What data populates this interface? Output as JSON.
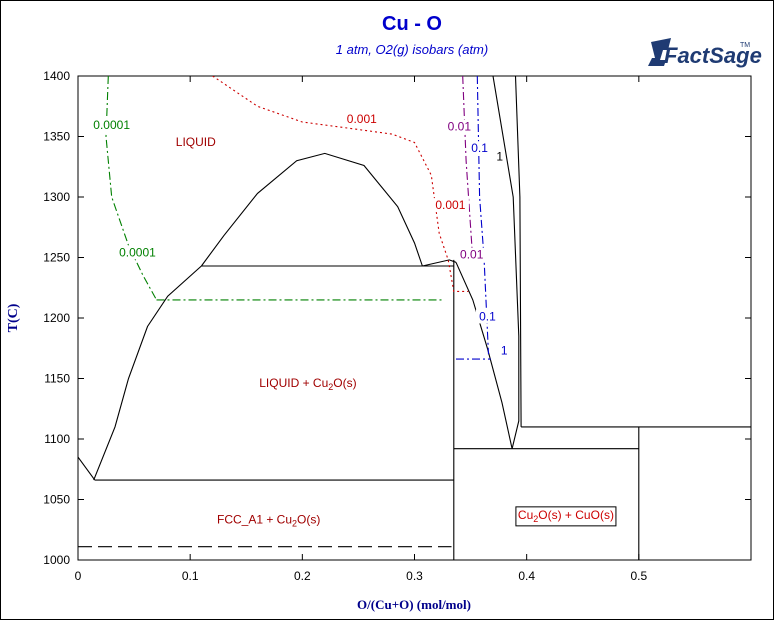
{
  "chart_data": {
    "type": "line",
    "title": "Cu - O",
    "subtitle": "1 atm, O2(g) isobars (atm)",
    "xlabel": "O/(Cu+O) (mol/mol)",
    "ylabel": "T(C)",
    "xlim": [
      0,
      0.6
    ],
    "ylim": [
      1000,
      1400
    ],
    "x_ticks": [
      {
        "v": 0,
        "label": "0"
      },
      {
        "v": 0.1,
        "label": "0.1"
      },
      {
        "v": 0.2,
        "label": "0.2"
      },
      {
        "v": 0.3,
        "label": "0.3"
      },
      {
        "v": 0.4,
        "label": "0.4"
      },
      {
        "v": 0.5,
        "label": "0.5"
      }
    ],
    "y_ticks": [
      {
        "v": 1000,
        "label": "1000"
      },
      {
        "v": 1050,
        "label": "1050"
      },
      {
        "v": 1100,
        "label": "1100"
      },
      {
        "v": 1150,
        "label": "1150"
      },
      {
        "v": 1200,
        "label": "1200"
      },
      {
        "v": 1250,
        "label": "1250"
      },
      {
        "v": 1300,
        "label": "1300"
      },
      {
        "v": 1350,
        "label": "1350"
      },
      {
        "v": 1400,
        "label": "1400"
      }
    ],
    "logo": {
      "text": "FactSage",
      "tm": "TM"
    },
    "phase_labels": [
      {
        "text": "LIQUID",
        "x": 0.105,
        "y": 1342,
        "color": "#a00000"
      },
      {
        "base": "LIQUID + Cu",
        "sub": "2",
        "rest": "O(s)",
        "x": 0.205,
        "y": 1143,
        "color": "#a00000"
      },
      {
        "base": "FCC_A1 + Cu",
        "sub": "2",
        "rest": "O(s)",
        "x": 0.17,
        "y": 1030,
        "color": "#a00000"
      },
      {
        "base": "Cu",
        "sub": "2",
        "rest": "O(s) + CuO(s)",
        "x": 0.435,
        "y": 1034,
        "color": "#cc0000",
        "boxed": true
      }
    ],
    "series": [
      {
        "style": "solid",
        "color": "#000000",
        "points": [
          [
            0.014,
            1066
          ],
          [
            0.033,
            1110
          ],
          [
            0.045,
            1150
          ],
          [
            0.062,
            1193
          ],
          [
            0.08,
            1218
          ],
          [
            0.11,
            1243
          ]
        ]
      },
      {
        "style": "solid",
        "color": "#000000",
        "points": [
          [
            0.11,
            1243
          ],
          [
            0.13,
            1268
          ],
          [
            0.16,
            1303
          ],
          [
            0.195,
            1330
          ],
          [
            0.22,
            1336
          ],
          [
            0.255,
            1326
          ],
          [
            0.285,
            1292
          ],
          [
            0.3,
            1262
          ],
          [
            0.307,
            1243
          ]
        ]
      },
      {
        "style": "solid",
        "color": "#000000",
        "points": [
          [
            0.307,
            1243
          ],
          [
            0.331,
            1248
          ],
          [
            0.337,
            1246
          ]
        ]
      },
      {
        "style": "solid",
        "color": "#000000",
        "points": [
          [
            0.11,
            1243
          ],
          [
            0.335,
            1243
          ]
        ]
      },
      {
        "style": "solid",
        "color": "#000000",
        "points": [
          [
            0,
            1085
          ],
          [
            0.015,
            1066
          ]
        ]
      },
      {
        "style": "solid",
        "color": "#000000",
        "points": [
          [
            0.015,
            1066
          ],
          [
            0.335,
            1066
          ]
        ]
      },
      {
        "style": "solid",
        "color": "#000000",
        "points": [
          [
            0.335,
            1248
          ],
          [
            0.335,
            1000
          ]
        ]
      },
      {
        "style": "solid",
        "color": "#000000",
        "points": [
          [
            0.337,
            1246
          ],
          [
            0.352,
            1215
          ],
          [
            0.365,
            1175
          ],
          [
            0.378,
            1130
          ],
          [
            0.387,
            1092
          ]
        ]
      },
      {
        "style": "solid",
        "color": "#000000",
        "points": [
          [
            0.387,
            1092
          ],
          [
            0.393,
            1115
          ],
          [
            0.393,
            1185
          ],
          [
            0.388,
            1300
          ],
          [
            0.37,
            1400
          ]
        ]
      },
      {
        "style": "solid",
        "color": "#000000",
        "points": [
          [
            0.39,
            1400
          ],
          [
            0.394,
            1300
          ],
          [
            0.395,
            1110
          ]
        ]
      },
      {
        "style": "solid",
        "color": "#000000",
        "points": [
          [
            0.395,
            1110
          ],
          [
            0.6,
            1110
          ]
        ]
      },
      {
        "style": "solid",
        "color": "#000000",
        "points": [
          [
            0.335,
            1092
          ],
          [
            0.5,
            1092
          ]
        ]
      },
      {
        "style": "solid",
        "color": "#000000",
        "points": [
          [
            0.5,
            1110
          ],
          [
            0.5,
            1000
          ]
        ]
      },
      {
        "style": "dashed",
        "color": "#000000",
        "points": [
          [
            0,
            1011
          ],
          [
            0.333,
            1011
          ]
        ]
      },
      {
        "style": "dashdot",
        "color": "#008000",
        "points": [
          [
            0.027,
            1400
          ],
          [
            0.025,
            1350
          ],
          [
            0.03,
            1300
          ],
          [
            0.045,
            1260
          ],
          [
            0.058,
            1235
          ],
          [
            0.07,
            1215
          ]
        ]
      },
      {
        "style": "dashdot",
        "color": "#008000",
        "points": [
          [
            0.07,
            1215
          ],
          [
            0.325,
            1215
          ]
        ]
      },
      {
        "style": "dotted",
        "color": "#cc0000",
        "points": [
          [
            0.12,
            1400
          ],
          [
            0.16,
            1375
          ],
          [
            0.2,
            1362
          ],
          [
            0.24,
            1357
          ],
          [
            0.28,
            1352
          ],
          [
            0.3,
            1345
          ],
          [
            0.315,
            1318
          ],
          [
            0.322,
            1270
          ],
          [
            0.33,
            1248
          ],
          [
            0.335,
            1222
          ],
          [
            0.348,
            1222
          ]
        ]
      },
      {
        "style": "dashdot",
        "color": "#800080",
        "points": [
          [
            0.343,
            1400
          ],
          [
            0.346,
            1330
          ],
          [
            0.35,
            1275
          ],
          [
            0.352,
            1248
          ]
        ]
      },
      {
        "style": "dashdot",
        "color": "#0000cc",
        "points": [
          [
            0.356,
            1400
          ],
          [
            0.358,
            1300
          ],
          [
            0.362,
            1250
          ],
          [
            0.366,
            1170
          ]
        ]
      },
      {
        "style": "dashdot",
        "color": "#0000cc",
        "points": [
          [
            0.337,
            1166
          ],
          [
            0.368,
            1166
          ]
        ]
      }
    ],
    "isobar_labels": [
      {
        "text": "0.0001",
        "x": 0.03,
        "y": 1356,
        "color": "#008000"
      },
      {
        "text": "0.0001",
        "x": 0.053,
        "y": 1251,
        "color": "#008000"
      },
      {
        "text": "0.001",
        "x": 0.253,
        "y": 1361,
        "color": "#cc0000"
      },
      {
        "text": "0.001",
        "x": 0.332,
        "y": 1290,
        "color": "#cc0000"
      },
      {
        "text": "0.01",
        "x": 0.34,
        "y": 1355,
        "color": "#800080"
      },
      {
        "text": "0.01",
        "x": 0.351,
        "y": 1249,
        "color": "#800080"
      },
      {
        "text": "0.1",
        "x": 0.358,
        "y": 1337,
        "color": "#0000cc"
      },
      {
        "text": "0.1",
        "x": 0.365,
        "y": 1198,
        "color": "#0000cc"
      },
      {
        "text": "1",
        "x": 0.376,
        "y": 1330,
        "color": "#000000"
      },
      {
        "text": "1",
        "x": 0.38,
        "y": 1170,
        "color": "#0000cc"
      }
    ]
  }
}
